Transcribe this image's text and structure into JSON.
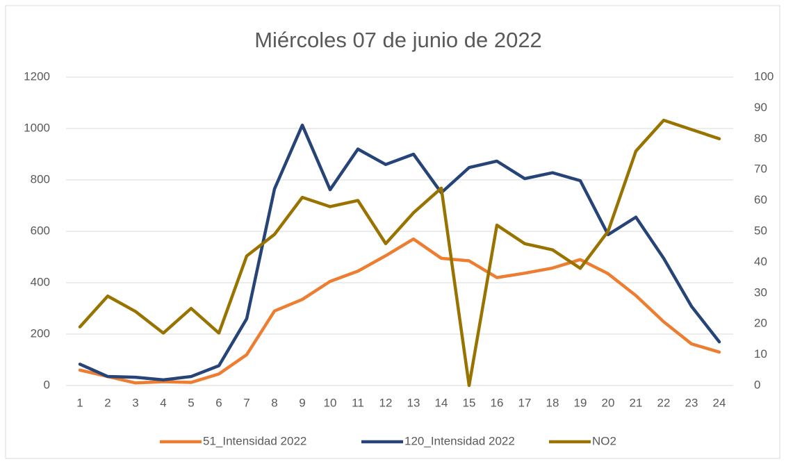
{
  "chart_data": {
    "type": "line",
    "title": "Miércoles 07 de junio de 2022",
    "categories": [
      "1",
      "2",
      "3",
      "4",
      "5",
      "6",
      "7",
      "8",
      "9",
      "10",
      "11",
      "12",
      "13",
      "14",
      "15",
      "16",
      "17",
      "18",
      "19",
      "20",
      "21",
      "22",
      "23",
      "24"
    ],
    "series": [
      {
        "name": "51_Intensidad 2022",
        "color": "#ED7D31",
        "values": [
          60,
          35,
          10,
          15,
          12,
          45,
          120,
          290,
          335,
          405,
          445,
          505,
          570,
          495,
          485,
          420,
          437,
          457,
          490,
          435,
          350,
          248,
          162,
          130
        ]
      },
      {
        "name": "120_Intensidad 2022",
        "color": "#264478",
        "values": [
          83,
          35,
          32,
          22,
          35,
          77,
          260,
          765,
          1013,
          762,
          920,
          860,
          900,
          750,
          848,
          873,
          805,
          828,
          797,
          587,
          655,
          495,
          308,
          170
        ]
      },
      {
        "name": "NO2",
        "color": "#997300",
        "axis": "y2",
        "values": [
          19,
          29,
          24,
          17,
          25,
          17,
          42,
          49,
          61,
          58,
          60,
          46,
          56,
          64,
          0,
          52,
          46,
          44,
          38,
          50,
          76,
          86,
          83,
          80
        ]
      }
    ],
    "ylim": [
      0,
      1200
    ],
    "yticks": [
      0,
      200,
      400,
      600,
      800,
      1000,
      1200
    ],
    "y2lim": [
      0,
      100
    ],
    "y2ticks": [
      0,
      10,
      20,
      30,
      40,
      50,
      60,
      70,
      80,
      90,
      100
    ],
    "grid": true,
    "legend": "bottom"
  }
}
